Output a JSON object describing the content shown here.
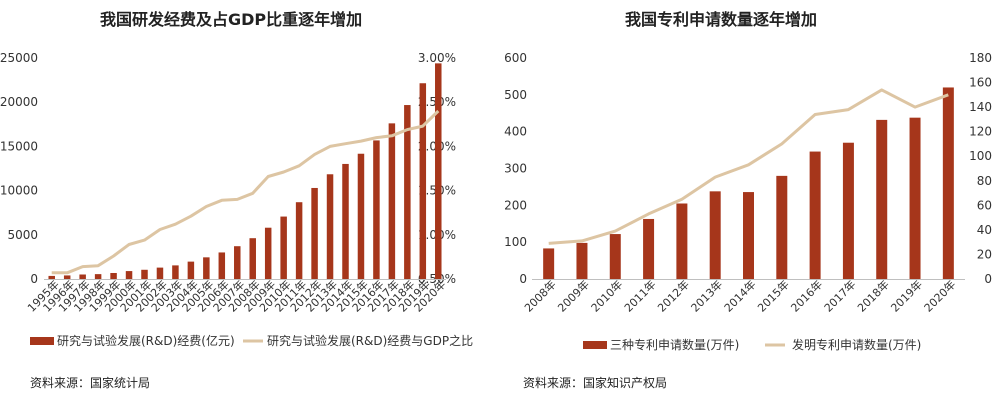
{
  "colors": {
    "bar": "#a6361b",
    "line": "#ddc5a3",
    "axis": "#bfbfbf",
    "text": "#333333"
  },
  "chart_data": [
    {
      "type": "bar+line",
      "title": "我国研发经费及占GDP比重逐年增加",
      "categories": [
        "1995年",
        "1996年",
        "1997年",
        "1998年",
        "1999年",
        "2000年",
        "2001年",
        "2002年",
        "2003年",
        "2004年",
        "2005年",
        "2006年",
        "2007年",
        "2008年",
        "2009年",
        "2010年",
        "2011年",
        "2012年",
        "2013年",
        "2014年",
        "2015年",
        "2016年",
        "2017年",
        "2018年",
        "2019年",
        "2020年"
      ],
      "series": [
        {
          "name": "研究与试验发展(R&D)经费(亿元)",
          "kind": "bar",
          "axis": "left",
          "values": [
            349,
            404,
            509,
            551,
            679,
            896,
            1043,
            1288,
            1540,
            1966,
            2450,
            3003,
            3710,
            4616,
            5802,
            7063,
            8687,
            10298,
            11847,
            13016,
            14170,
            15677,
            17606,
            19678,
            22144,
            24393
          ]
        },
        {
          "name": "研究与试验发展(R&D)经费与GDP之比",
          "kind": "line",
          "axis": "right",
          "values": [
            0.57,
            0.57,
            0.64,
            0.65,
            0.76,
            0.89,
            0.94,
            1.06,
            1.12,
            1.21,
            1.32,
            1.39,
            1.4,
            1.47,
            1.66,
            1.71,
            1.78,
            1.91,
            2.0,
            2.03,
            2.06,
            2.1,
            2.12,
            2.19,
            2.23,
            2.4
          ]
        }
      ],
      "yleft": {
        "min": 0,
        "max": 25000,
        "ticks": [
          "0",
          "5000",
          "10000",
          "15000",
          "20000",
          "25000"
        ]
      },
      "yright": {
        "min": 0.5,
        "max": 3.0,
        "ticks": [
          "0.50%",
          "1.00%",
          "1.50%",
          "2.00%",
          "2.50%",
          "3.00%"
        ]
      },
      "source": "资料来源：国家统计局"
    },
    {
      "type": "bar+line",
      "title": "我国专利申请数量逐年增加",
      "categories": [
        "2008年",
        "2009年",
        "2010年",
        "2011年",
        "2012年",
        "2013年",
        "2014年",
        "2015年",
        "2016年",
        "2017年",
        "2018年",
        "2019年",
        "2020年"
      ],
      "series": [
        {
          "name": "三种专利申请数量(万件)",
          "kind": "bar",
          "axis": "left",
          "values": [
            83,
            98,
            122,
            163,
            205,
            238,
            236,
            280,
            346,
            370,
            432,
            438,
            520
          ]
        },
        {
          "name": "发明专利申请数量(万件)",
          "kind": "line",
          "axis": "right",
          "values": [
            29,
            31,
            39,
            53,
            65,
            83,
            93,
            110,
            134,
            138,
            154,
            140,
            150
          ]
        }
      ],
      "yleft": {
        "min": 0,
        "max": 600,
        "ticks": [
          "0",
          "100",
          "200",
          "300",
          "400",
          "500",
          "600"
        ]
      },
      "yright": {
        "min": 0,
        "max": 180,
        "ticks": [
          "0",
          "20",
          "40",
          "60",
          "80",
          "100",
          "120",
          "140",
          "160",
          "180"
        ]
      },
      "source": "资料来源：国家知识产权局"
    }
  ]
}
